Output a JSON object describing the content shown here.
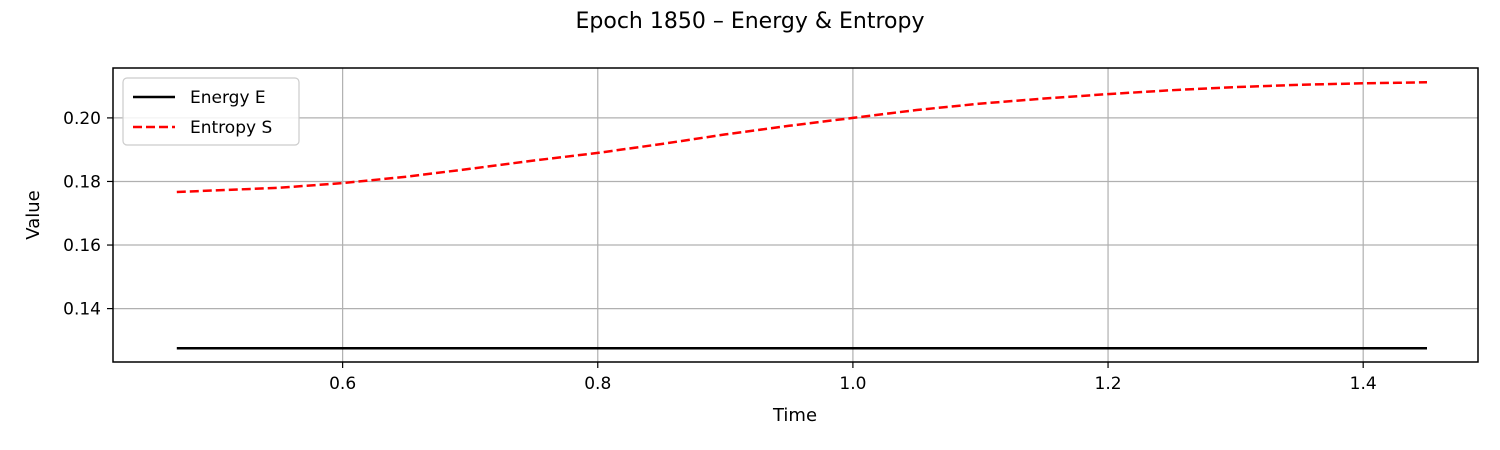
{
  "chart_data": {
    "type": "line",
    "title": "Epoch 1850 – Energy & Entropy",
    "xlabel": "Time",
    "ylabel": "Value",
    "xlim": [
      0.42,
      1.49
    ],
    "ylim": [
      0.1232,
      0.2157
    ],
    "xticks": [
      0.6,
      0.8,
      1.0,
      1.2,
      1.4
    ],
    "xtick_labels": [
      "0.6",
      "0.8",
      "1.0",
      "1.2",
      "1.4"
    ],
    "yticks": [
      0.14,
      0.16,
      0.18,
      0.2
    ],
    "ytick_labels": [
      "0.14",
      "0.16",
      "0.18",
      "0.20"
    ],
    "grid": true,
    "legend_position": "top-left",
    "series": [
      {
        "name": "Energy E",
        "color": "#000000",
        "style": "solid",
        "x": [
          0.47,
          1.45
        ],
        "y": [
          0.1275,
          0.1275
        ]
      },
      {
        "name": "Entropy S",
        "color": "#ff0000",
        "style": "dashed",
        "x": [
          0.47,
          0.5,
          0.55,
          0.6,
          0.65,
          0.7,
          0.75,
          0.8,
          0.85,
          0.9,
          0.95,
          1.0,
          1.05,
          1.1,
          1.15,
          1.2,
          1.25,
          1.3,
          1.35,
          1.4,
          1.45
        ],
        "y": [
          0.1767,
          0.1772,
          0.178,
          0.1795,
          0.1815,
          0.184,
          0.1866,
          0.189,
          0.1918,
          0.1948,
          0.1975,
          0.2,
          0.2025,
          0.2045,
          0.2061,
          0.2075,
          0.2087,
          0.2097,
          0.2104,
          0.2109,
          0.2112
        ]
      }
    ]
  }
}
